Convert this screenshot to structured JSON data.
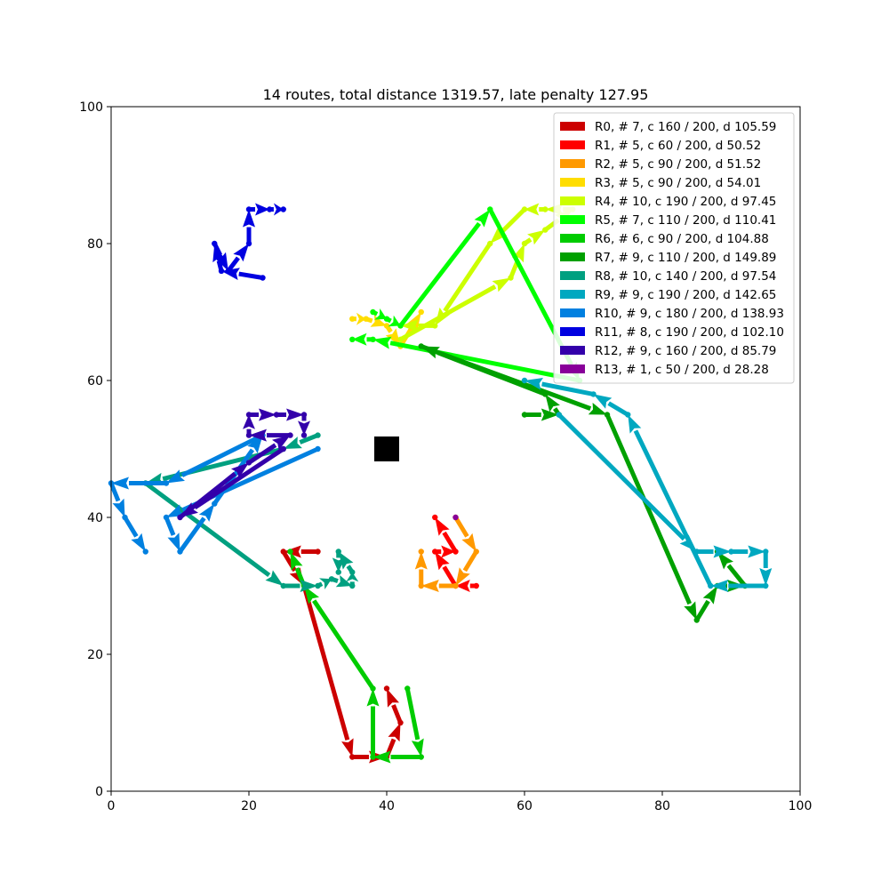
{
  "chart_data": {
    "type": "line",
    "title": "14 routes, total distance 1319.57, late penalty 127.95",
    "xlabel": "",
    "ylabel": "",
    "xlim": [
      0,
      100
    ],
    "ylim": [
      0,
      100
    ],
    "xticks": [
      0,
      20,
      40,
      60,
      80,
      100
    ],
    "yticks": [
      0,
      20,
      40,
      60,
      80,
      100
    ],
    "grid": false,
    "legend_position": "top-right",
    "depot": {
      "x": 40,
      "y": 50,
      "color": "#000000"
    },
    "series": [
      {
        "name": "R0, # 7, c 160 / 200, d 105.59",
        "color": "#cc0000",
        "points": [
          [
            30,
            35
          ],
          [
            25,
            35
          ],
          [
            28,
            30
          ],
          [
            35,
            5
          ],
          [
            40,
            5
          ],
          [
            42,
            10
          ],
          [
            40,
            15
          ]
        ]
      },
      {
        "name": "R1, # 5, c 60 / 200, d 50.52",
        "color": "#ff0000",
        "points": [
          [
            53,
            30
          ],
          [
            50,
            30
          ],
          [
            47,
            35
          ],
          [
            50,
            35
          ],
          [
            47,
            40
          ]
        ]
      },
      {
        "name": "R2, # 5, c 90 / 200, d 51.52",
        "color": "#ff9900",
        "points": [
          [
            50,
            40
          ],
          [
            53,
            35
          ],
          [
            50,
            30
          ],
          [
            45,
            30
          ],
          [
            45,
            35
          ]
        ]
      },
      {
        "name": "R3, # 5, c 90 / 200, d 54.01",
        "color": "#ffdd00",
        "points": [
          [
            35,
            69
          ],
          [
            37,
            69
          ],
          [
            40,
            68
          ],
          [
            42,
            65
          ],
          [
            45,
            70
          ]
        ]
      },
      {
        "name": "R4, # 10, c 190 / 200, d 97.45",
        "color": "#ccff00",
        "points": [
          [
            42,
            66
          ],
          [
            58,
            75
          ],
          [
            60,
            80
          ],
          [
            63,
            82
          ],
          [
            67,
            85
          ],
          [
            63,
            85
          ],
          [
            60,
            85
          ],
          [
            55,
            80
          ],
          [
            47,
            68
          ],
          [
            42,
            68
          ]
        ]
      },
      {
        "name": "R5, # 7, c 110 / 200, d 110.41",
        "color": "#00ff00",
        "points": [
          [
            38,
            70
          ],
          [
            40,
            69
          ],
          [
            42,
            68
          ],
          [
            55,
            85
          ],
          [
            68,
            60
          ],
          [
            38,
            66
          ],
          [
            35,
            66
          ]
        ]
      },
      {
        "name": "R6, # 6, c 90 / 200, d 104.88",
        "color": "#00cc00",
        "points": [
          [
            43,
            15
          ],
          [
            45,
            5
          ],
          [
            38,
            5
          ],
          [
            38,
            15
          ],
          [
            28,
            30
          ],
          [
            26,
            35
          ]
        ]
      },
      {
        "name": "R7, # 9, c 110 / 200, d 149.89",
        "color": "#00a000",
        "points": [
          [
            60,
            55
          ],
          [
            65,
            55
          ],
          [
            63,
            58
          ],
          [
            45,
            65
          ],
          [
            72,
            55
          ],
          [
            85,
            25
          ],
          [
            88,
            30
          ],
          [
            92,
            30
          ],
          [
            88,
            35
          ]
        ]
      },
      {
        "name": "R8, # 10, c 140 / 200, d 97.54",
        "color": "#00a080",
        "points": [
          [
            30,
            52
          ],
          [
            25,
            50
          ],
          [
            5,
            45
          ],
          [
            25,
            30
          ],
          [
            30,
            30
          ],
          [
            32,
            31
          ],
          [
            35,
            30
          ],
          [
            35,
            32
          ],
          [
            33,
            35
          ],
          [
            33,
            32
          ]
        ]
      },
      {
        "name": "R9, # 9, c 190 / 200, d 142.65",
        "color": "#00a8c0",
        "points": [
          [
            65,
            55
          ],
          [
            85,
            35
          ],
          [
            90,
            35
          ],
          [
            95,
            35
          ],
          [
            95,
            30
          ],
          [
            87,
            30
          ],
          [
            75,
            55
          ],
          [
            70,
            58
          ],
          [
            60,
            60
          ]
        ]
      },
      {
        "name": "R10, # 9, c 180 / 200, d 138.93",
        "color": "#0080e0",
        "points": [
          [
            30,
            50
          ],
          [
            8,
            40
          ],
          [
            10,
            35
          ],
          [
            15,
            42
          ],
          [
            22,
            52
          ],
          [
            8,
            45
          ],
          [
            0,
            45
          ],
          [
            2,
            40
          ],
          [
            5,
            35
          ]
        ]
      },
      {
        "name": "R11, # 8, c 190 / 200, d 102.10",
        "color": "#0000e0",
        "points": [
          [
            22,
            75
          ],
          [
            16,
            76
          ],
          [
            15,
            80
          ],
          [
            17,
            76
          ],
          [
            20,
            80
          ],
          [
            20,
            85
          ],
          [
            23,
            85
          ],
          [
            25,
            85
          ]
        ]
      },
      {
        "name": "R12, # 9, c 160 / 200, d 85.79",
        "color": "#3300aa",
        "points": [
          [
            25,
            50
          ],
          [
            10,
            40
          ],
          [
            20,
            48
          ],
          [
            26,
            52
          ],
          [
            20,
            52
          ],
          [
            20,
            55
          ],
          [
            24,
            55
          ],
          [
            28,
            55
          ],
          [
            28,
            52
          ]
        ]
      },
      {
        "name": "R13, # 1, c 50 / 200, d 28.28",
        "color": "#880099",
        "points": [
          [
            50,
            40
          ]
        ]
      }
    ]
  }
}
